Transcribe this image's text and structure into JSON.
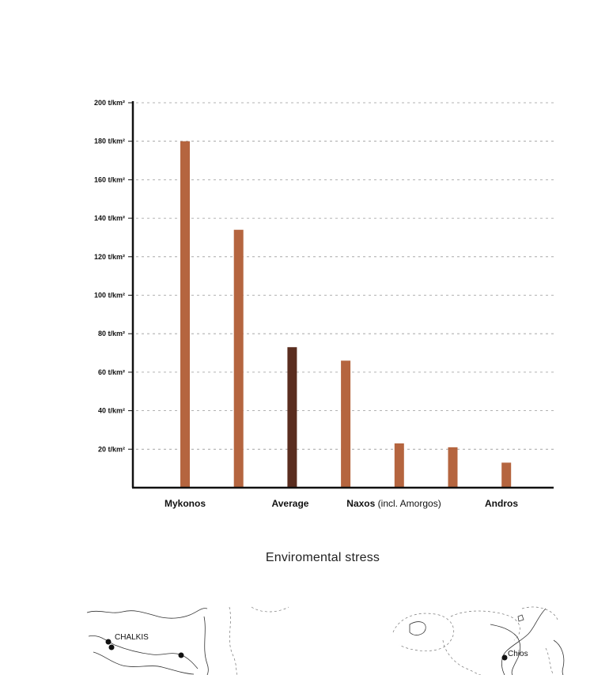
{
  "chart_data": {
    "type": "bar",
    "title": "Enviromental stress",
    "xlabel": "",
    "ylabel": "",
    "ylim": [
      0,
      200
    ],
    "y_ticks": [
      {
        "value": 20,
        "label": "20 t/km²"
      },
      {
        "value": 40,
        "label": "40 t/km²"
      },
      {
        "value": 60,
        "label": "60 t/km²"
      },
      {
        "value": 80,
        "label": "80 t/km²"
      },
      {
        "value": 100,
        "label": "100 t/km²"
      },
      {
        "value": 120,
        "label": "120 t/km²"
      },
      {
        "value": 140,
        "label": "140 t/km²"
      },
      {
        "value": 160,
        "label": "160 t/km²"
      },
      {
        "value": 180,
        "label": "180 t/km²"
      },
      {
        "value": 200,
        "label": "200 t/km²"
      }
    ],
    "grid": "horizontal-dashed",
    "legend": "none",
    "bars": [
      {
        "label": "",
        "value": 180,
        "highlight": false
      },
      {
        "label": "",
        "value": 134,
        "highlight": false
      },
      {
        "label": "",
        "value": 73,
        "highlight": true
      },
      {
        "label": "",
        "value": 66,
        "highlight": false
      },
      {
        "label": "",
        "value": 23,
        "highlight": false
      },
      {
        "label": "",
        "value": 21,
        "highlight": false
      },
      {
        "label": "",
        "value": 13,
        "highlight": false
      }
    ],
    "category_labels": [
      {
        "bold": "Mykonos",
        "extra": ""
      },
      {
        "bold": "Average",
        "extra": ""
      },
      {
        "bold": "Naxos",
        "extra": " (incl. Amorgos)"
      },
      {
        "bold": "Andros",
        "extra": ""
      }
    ],
    "colors": {
      "bar": "#b5653f",
      "highlight": "#5a2d1f",
      "axis": "#111111",
      "grid": "#9a9a9a"
    }
  },
  "map": {
    "labels": [
      "CHALKIS",
      "Chios"
    ]
  }
}
